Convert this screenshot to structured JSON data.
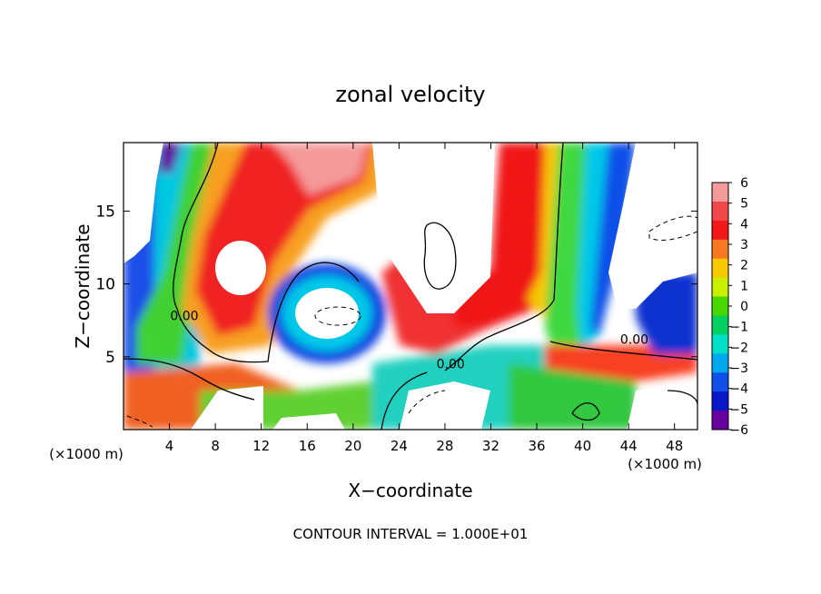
{
  "chart_data": {
    "type": "heatmap",
    "title": "zonal velocity",
    "xlabel": "X−coordinate",
    "ylabel": "Z−coordinate",
    "x_unit_label": "(×1000 m)",
    "x_unit_label_right": "(×1000 m)",
    "footer": "CONTOUR INTERVAL = 1.000E+01",
    "xlim": [
      0,
      50
    ],
    "ylim": [
      0,
      19.7
    ],
    "x_ticks": [
      4,
      8,
      12,
      16,
      20,
      24,
      28,
      32,
      36,
      40,
      44,
      48
    ],
    "y_ticks": [
      5,
      10,
      15
    ],
    "colorbar": {
      "range": [
        -6,
        6
      ],
      "ticks": [
        6,
        5,
        4,
        3,
        2,
        1,
        0,
        -1,
        -2,
        -3,
        -4,
        -5,
        -6
      ],
      "tick_labels": [
        "6",
        "5",
        "4",
        "3",
        "2",
        "1",
        "0",
        "−1",
        "−2",
        "−3",
        "−4",
        "−5",
        "−6"
      ],
      "colors": [
        "#f49a9a",
        "#f04848",
        "#f01818",
        "#f87820",
        "#f8c800",
        "#c8f000",
        "#48d800",
        "#00d060",
        "#00e0c8",
        "#00a8f0",
        "#1050e8",
        "#0818c8",
        "#6800a0"
      ]
    },
    "contour_labels": [
      {
        "text": "0.00",
        "x": 28.5,
        "y": 4.2
      },
      {
        "text": "0.00",
        "x": 44.5,
        "y": 5.9
      },
      {
        "text": "0.00",
        "x": 5.3,
        "y": 7.5
      }
    ]
  }
}
